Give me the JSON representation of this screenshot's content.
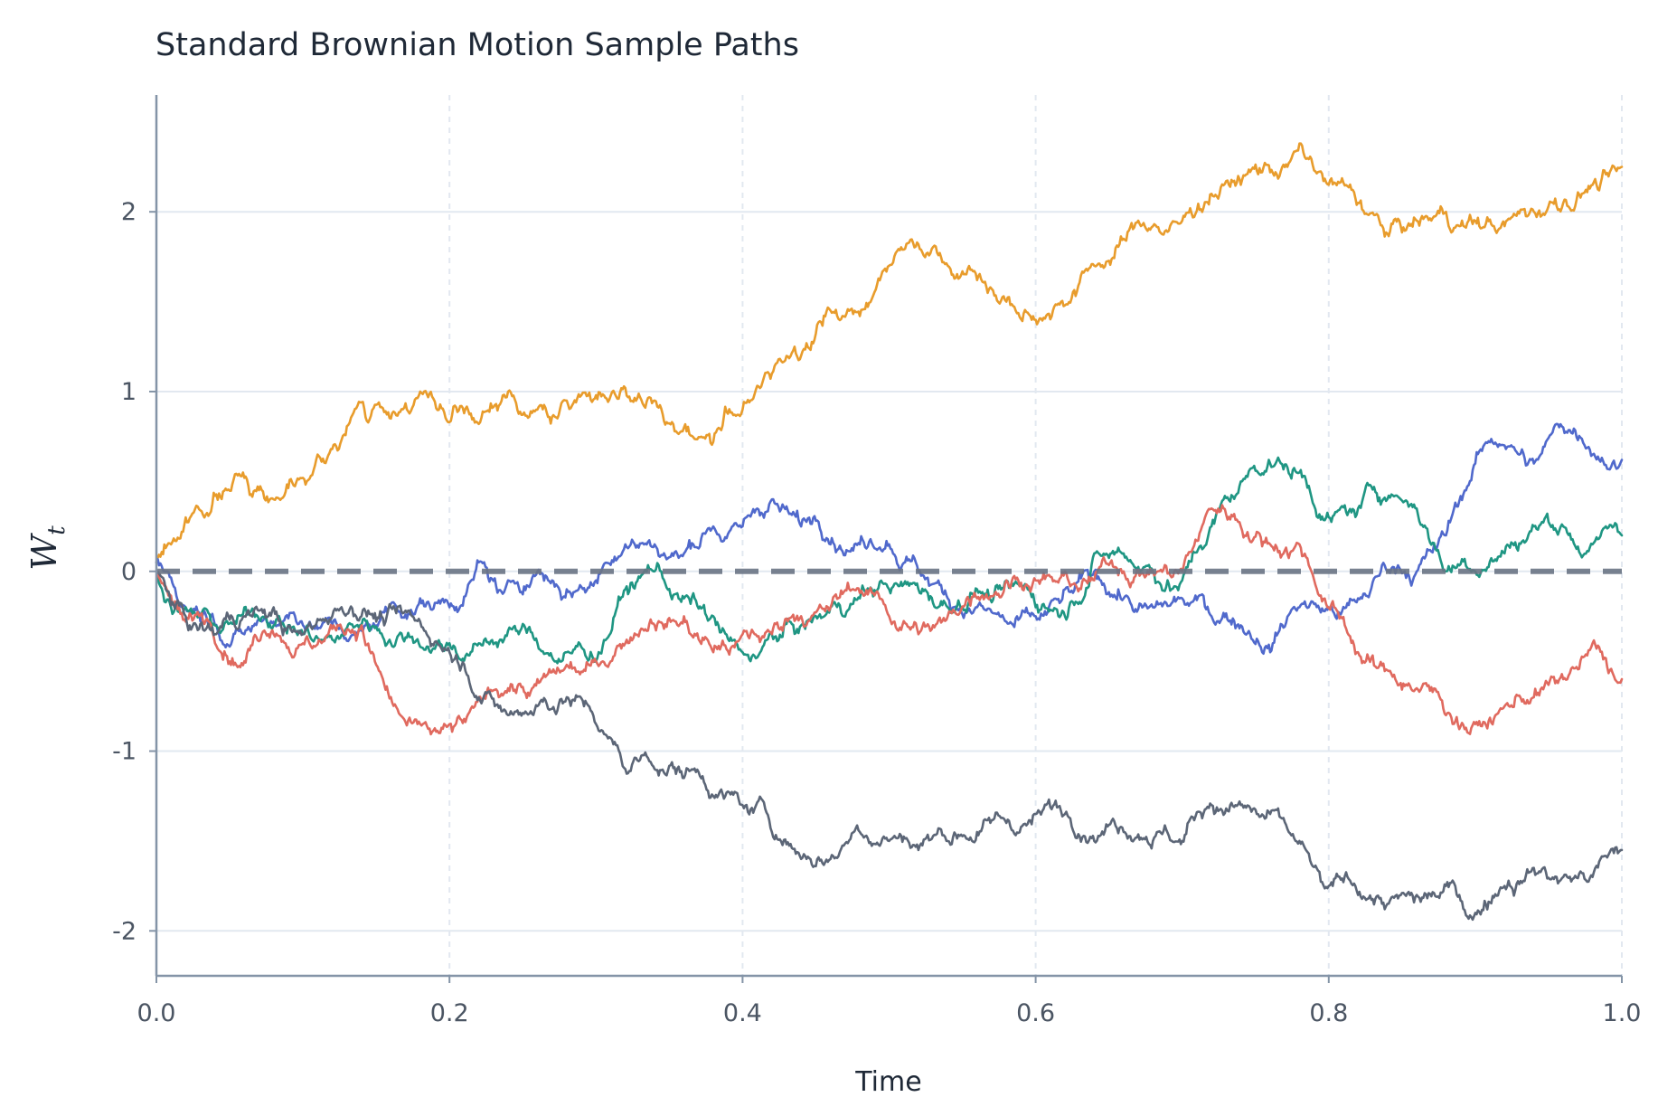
{
  "chart_data": {
    "type": "line",
    "title": "Standard Brownian Motion Sample Paths",
    "xlabel": "Time",
    "ylabel": "W",
    "ylabel_subscript": "t",
    "xlim": [
      0,
      1
    ],
    "ylim": [
      -2.25,
      2.65
    ],
    "xticks": [
      0.0,
      0.2,
      0.4,
      0.6,
      0.8,
      1.0
    ],
    "xtick_labels": [
      "0.0",
      "0.2",
      "0.4",
      "0.6",
      "0.8",
      "1.0"
    ],
    "yticks": [
      -2,
      -1,
      0,
      1,
      2
    ],
    "ytick_labels": [
      "-2",
      "-1",
      "0",
      "1",
      "2"
    ],
    "grid": true,
    "reference_line": {
      "y": 0,
      "style": "dashed",
      "color": "#6b7585"
    },
    "x": [
      0.0,
      0.02,
      0.04,
      0.06,
      0.08,
      0.1,
      0.12,
      0.14,
      0.16,
      0.18,
      0.2,
      0.22,
      0.24,
      0.26,
      0.28,
      0.3,
      0.32,
      0.34,
      0.36,
      0.38,
      0.4,
      0.42,
      0.44,
      0.46,
      0.48,
      0.5,
      0.52,
      0.54,
      0.56,
      0.58,
      0.6,
      0.62,
      0.64,
      0.66,
      0.68,
      0.7,
      0.72,
      0.74,
      0.76,
      0.78,
      0.8,
      0.82,
      0.84,
      0.86,
      0.88,
      0.9,
      0.92,
      0.94,
      0.96,
      0.98,
      1.0
    ],
    "series": [
      {
        "color": "#e89c2c",
        "values": [
          0.05,
          0.3,
          0.42,
          0.52,
          0.4,
          0.52,
          0.68,
          0.94,
          0.85,
          1.0,
          0.83,
          0.82,
          1.0,
          0.9,
          0.95,
          0.98,
          1.02,
          0.95,
          0.8,
          0.72,
          0.9,
          1.1,
          1.2,
          1.45,
          1.42,
          1.7,
          1.82,
          1.7,
          1.62,
          1.5,
          1.4,
          1.48,
          1.7,
          1.85,
          1.92,
          1.95,
          2.1,
          2.15,
          2.22,
          2.38,
          2.15,
          2.05,
          1.88,
          1.95,
          2.0,
          1.95,
          1.92,
          2.0,
          2.05,
          2.15,
          2.25
        ]
      },
      {
        "color": "#5069cc",
        "values": [
          0.05,
          -0.2,
          -0.3,
          -0.35,
          -0.28,
          -0.3,
          -0.3,
          -0.33,
          -0.18,
          -0.15,
          -0.2,
          0.05,
          -0.05,
          0.0,
          -0.1,
          -0.05,
          0.15,
          0.15,
          0.1,
          0.25,
          0.25,
          0.4,
          0.25,
          0.15,
          0.15,
          0.15,
          0.0,
          -0.15,
          -0.2,
          -0.28,
          -0.25,
          -0.1,
          0.0,
          -0.15,
          -0.2,
          -0.15,
          -0.25,
          -0.3,
          -0.45,
          -0.2,
          -0.2,
          -0.15,
          0.0,
          0.0,
          0.2,
          0.6,
          0.7,
          0.6,
          0.8,
          0.65,
          0.62
        ]
      },
      {
        "color": "#1f9683",
        "values": [
          0.0,
          -0.2,
          -0.3,
          -0.2,
          -0.3,
          -0.35,
          -0.38,
          -0.3,
          -0.4,
          -0.42,
          -0.4,
          -0.4,
          -0.33,
          -0.4,
          -0.45,
          -0.5,
          -0.1,
          0.0,
          -0.15,
          -0.25,
          -0.45,
          -0.35,
          -0.3,
          -0.2,
          -0.15,
          -0.1,
          -0.1,
          -0.2,
          -0.1,
          -0.05,
          -0.2,
          -0.25,
          0.1,
          0.1,
          0.0,
          -0.05,
          0.25,
          0.5,
          0.6,
          0.55,
          0.3,
          0.35,
          0.4,
          0.35,
          0.0,
          0.0,
          0.1,
          0.25,
          0.25,
          0.15,
          0.2
        ]
      },
      {
        "color": "#e06a5f",
        "values": [
          0.0,
          -0.28,
          -0.4,
          -0.5,
          -0.35,
          -0.4,
          -0.32,
          -0.3,
          -0.7,
          -0.85,
          -0.85,
          -0.7,
          -0.65,
          -0.6,
          -0.52,
          -0.5,
          -0.4,
          -0.3,
          -0.25,
          -0.45,
          -0.35,
          -0.35,
          -0.25,
          -0.2,
          -0.12,
          -0.25,
          -0.35,
          -0.25,
          -0.15,
          -0.05,
          -0.05,
          0.0,
          -0.05,
          0.0,
          0.0,
          0.0,
          0.35,
          0.25,
          0.15,
          0.15,
          -0.2,
          -0.45,
          -0.55,
          -0.65,
          -0.8,
          -0.85,
          -0.75,
          -0.7,
          -0.6,
          -0.4,
          -0.6
        ]
      },
      {
        "color": "#5c6677",
        "values": [
          0.0,
          -0.25,
          -0.35,
          -0.25,
          -0.2,
          -0.35,
          -0.25,
          -0.25,
          -0.2,
          -0.28,
          -0.45,
          -0.7,
          -0.8,
          -0.75,
          -0.7,
          -0.85,
          -1.1,
          -1.1,
          -1.15,
          -1.25,
          -1.3,
          -1.45,
          -1.6,
          -1.6,
          -1.45,
          -1.5,
          -1.55,
          -1.5,
          -1.45,
          -1.4,
          -1.35,
          -1.35,
          -1.5,
          -1.45,
          -1.5,
          -1.5,
          -1.3,
          -1.3,
          -1.35,
          -1.5,
          -1.75,
          -1.8,
          -1.85,
          -1.8,
          -1.75,
          -1.9,
          -1.75,
          -1.65,
          -1.7,
          -1.7,
          -1.55
        ]
      }
    ]
  }
}
